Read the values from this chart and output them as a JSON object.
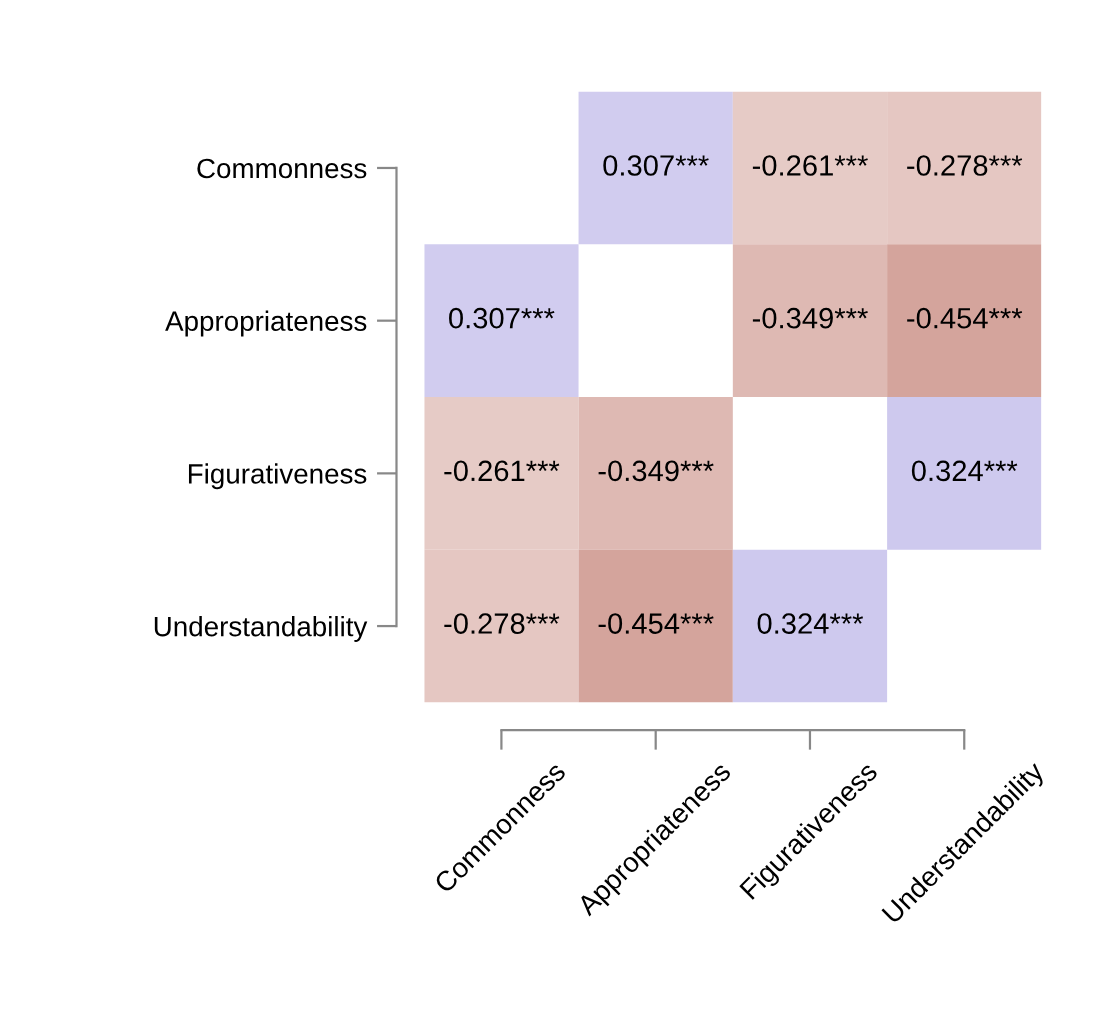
{
  "chart_data": {
    "type": "heatmap",
    "categories": [
      "Commonness",
      "Appropriateness",
      "Figurativeness",
      "Understandability"
    ],
    "y_categories": [
      "Commonness",
      "Appropriateness",
      "Figurativeness",
      "Understandability"
    ],
    "cells": [
      [
        null,
        0.307,
        -0.261,
        -0.278
      ],
      [
        0.307,
        null,
        -0.349,
        -0.454
      ],
      [
        -0.261,
        -0.349,
        null,
        0.324
      ],
      [
        -0.278,
        -0.454,
        0.324,
        null
      ]
    ],
    "cell_labels": [
      [
        null,
        "0.307***",
        "-0.261***",
        "-0.278***"
      ],
      [
        "0.307***",
        null,
        "-0.349***",
        "-0.454***"
      ],
      [
        "-0.261***",
        "-0.349***",
        null,
        "0.324***"
      ],
      [
        "-0.278***",
        "-0.454***",
        "0.324***",
        null
      ]
    ]
  }
}
